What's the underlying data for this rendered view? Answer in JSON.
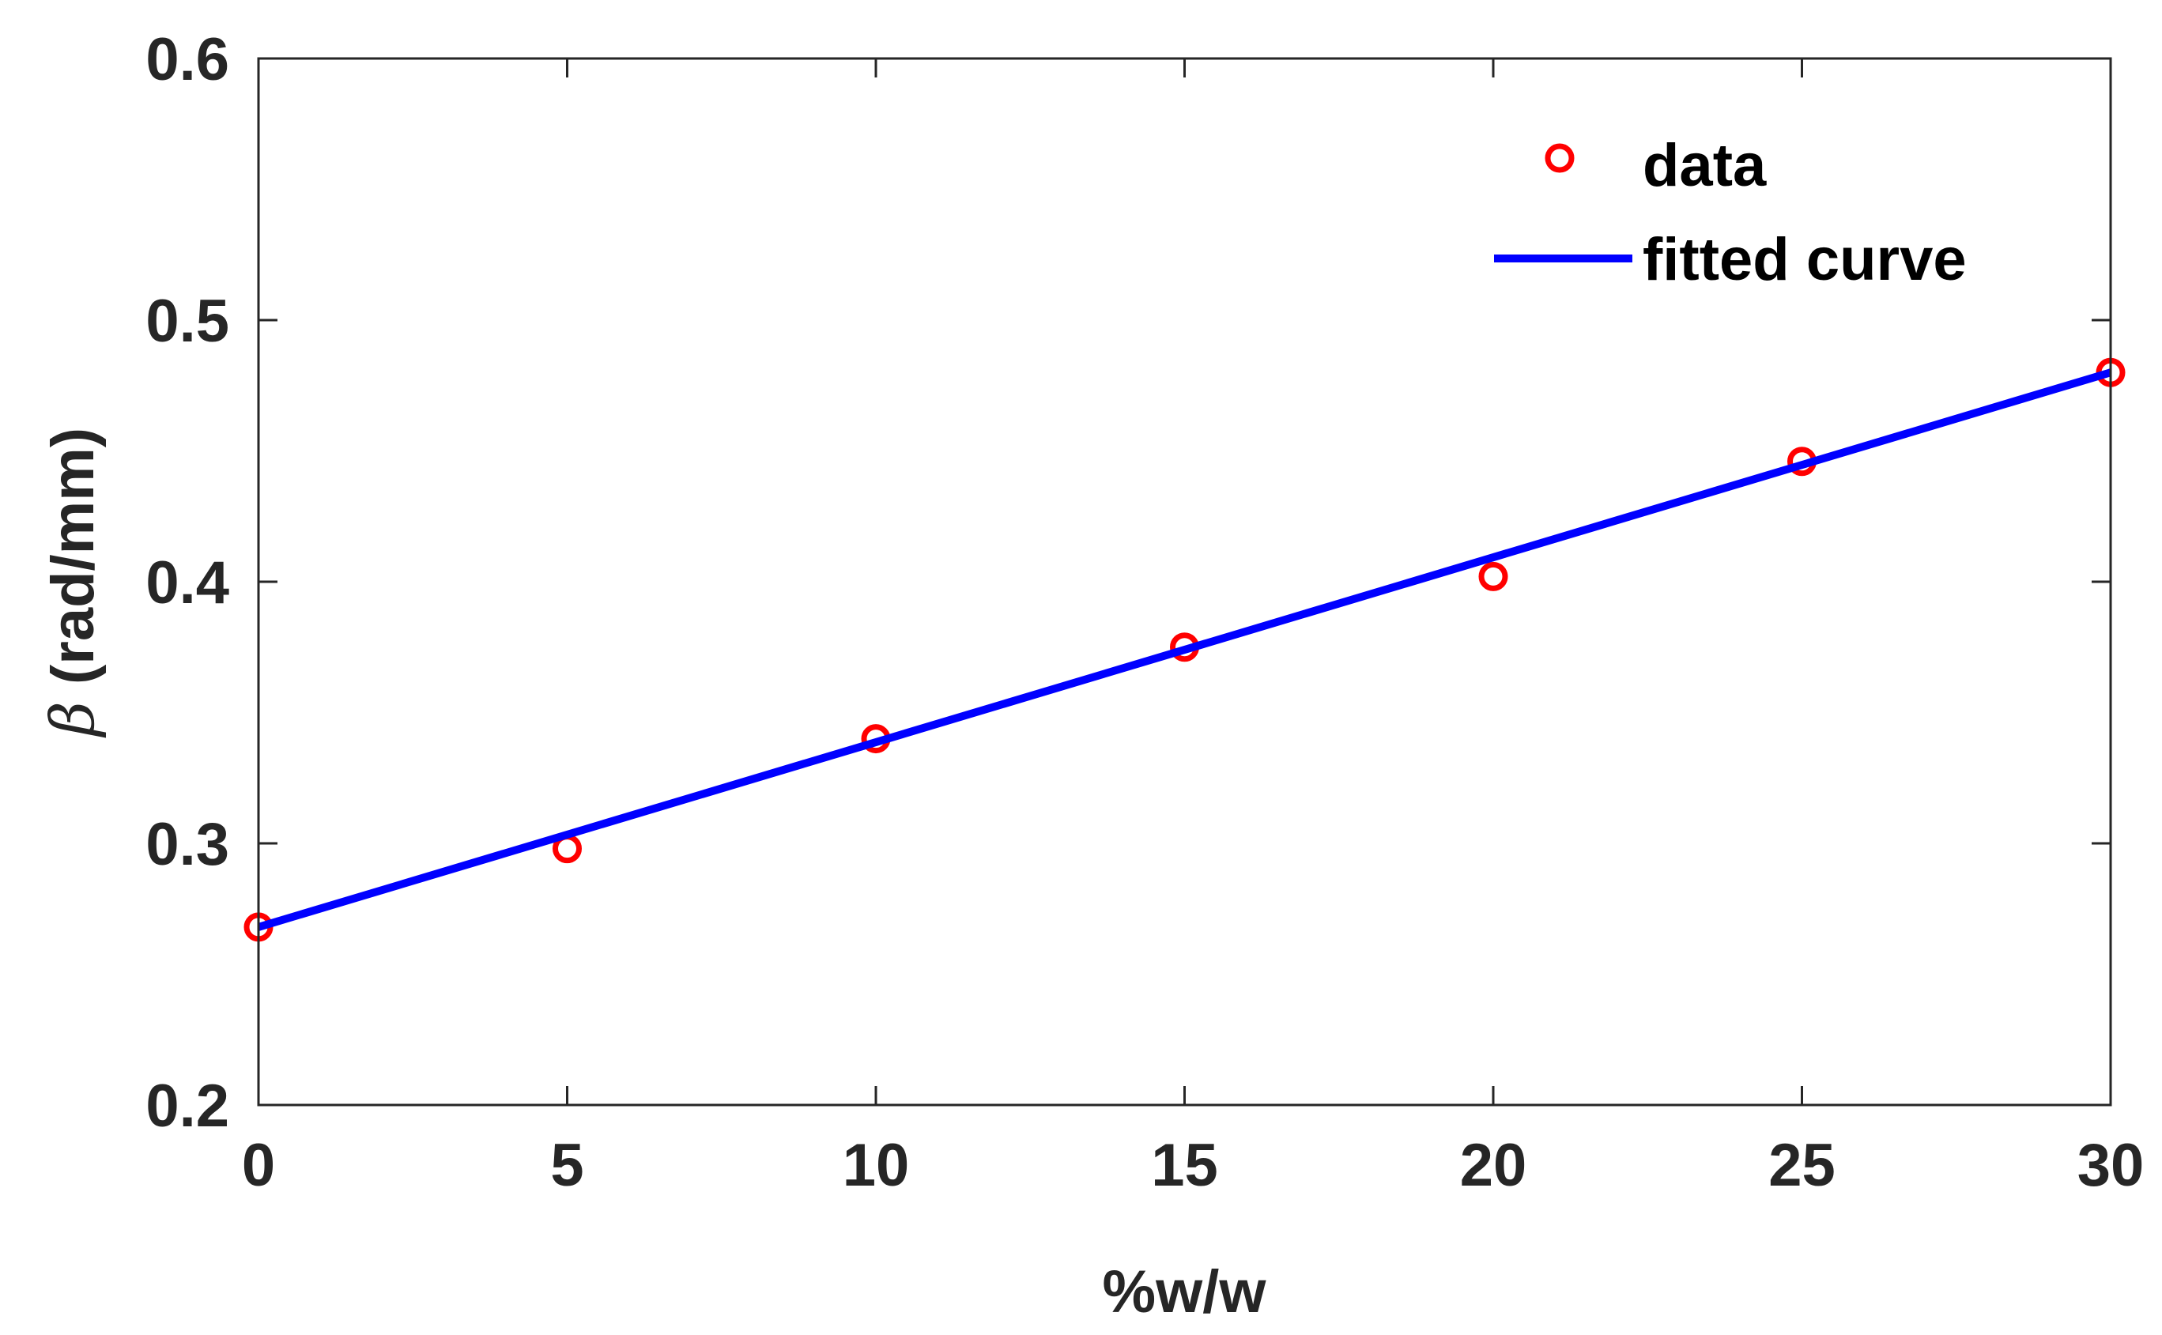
{
  "chart_data": {
    "type": "scatter",
    "title": "",
    "xlabel": "%w/w",
    "ylabel": {
      "symbol": "β",
      "text": " (rad/mm)"
    },
    "xlim": [
      0,
      30
    ],
    "ylim": [
      0.2,
      0.6
    ],
    "xticks": [
      0,
      5,
      10,
      15,
      20,
      25,
      30
    ],
    "xtick_labels": [
      "0",
      "5",
      "10",
      "15",
      "20",
      "25",
      "30"
    ],
    "yticks": [
      0.2,
      0.3,
      0.4,
      0.5,
      0.6
    ],
    "ytick_labels": [
      "0.2",
      "0.3",
      "0.4",
      "0.5",
      "0.6"
    ],
    "grid": false,
    "legend_position": "top-right",
    "series": [
      {
        "name": "data",
        "kind": "markers",
        "marker": "circle-open",
        "color": "#ff0000",
        "x": [
          0,
          5,
          10,
          15,
          20,
          25,
          30
        ],
        "y": [
          0.268,
          0.298,
          0.34,
          0.375,
          0.402,
          0.446,
          0.48
        ]
      },
      {
        "name": "fitted curve",
        "kind": "line",
        "color": "#0000ff",
        "x": [
          0,
          30
        ],
        "y": [
          0.268,
          0.48
        ]
      }
    ]
  }
}
